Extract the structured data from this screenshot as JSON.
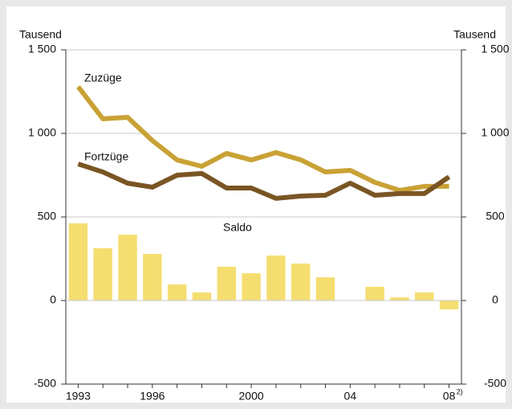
{
  "chart_data": {
    "type": "line-bar",
    "ylabel": "Tausend",
    "y2label": "Tausend",
    "categories": [
      "1993",
      null,
      null,
      "1996",
      null,
      null,
      null,
      "2000",
      null,
      null,
      null,
      "04",
      null,
      null,
      null,
      "08"
    ],
    "category_footnote": "2)",
    "series": [
      {
        "name": "Zuzüge",
        "kind": "line",
        "color": "#c9a235",
        "values": [
          1279,
          1087,
          1096,
          957,
          841,
          803,
          880,
          841,
          885,
          842,
          769,
          779,
          707,
          659,
          683,
          683
        ]
      },
      {
        "name": "Fortzüge",
        "kind": "line",
        "color": "#7a5524",
        "values": [
          817,
          769,
          702,
          678,
          750,
          760,
          673,
          673,
          611,
          625,
          630,
          702,
          630,
          640,
          640,
          740
        ]
      },
      {
        "name": "Saldo",
        "kind": "bar",
        "color": "#f5de70",
        "values": [
          462,
          313,
          394,
          279,
          96,
          48,
          202,
          163,
          269,
          221,
          139,
          null,
          82,
          19,
          48,
          -53
        ]
      }
    ],
    "ylim": [
      -500,
      1500
    ],
    "yticks": [
      -500,
      0,
      500,
      {
        "value": 1000,
        "label": "1 000"
      },
      {
        "value": 1500,
        "label": "1 500"
      }
    ],
    "y2lim": [
      -500,
      1500
    ],
    "y2ticks": [
      -500,
      0,
      500,
      {
        "value": 1000,
        "label": "1 000"
      },
      {
        "value": 1500,
        "label": "1 500"
      }
    ],
    "grid": true
  }
}
